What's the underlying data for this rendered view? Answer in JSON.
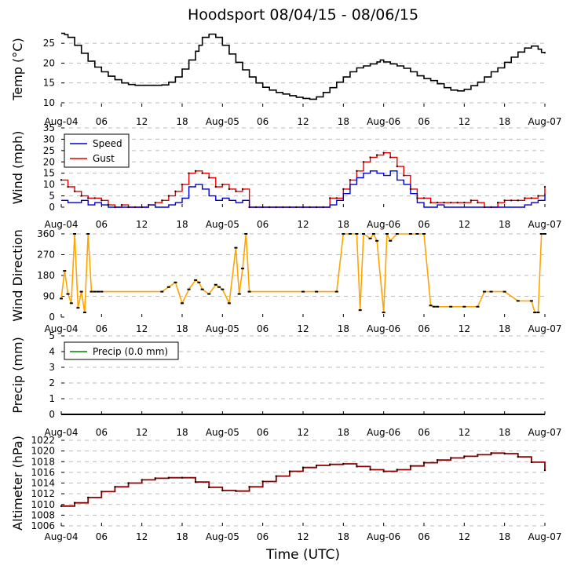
{
  "figure": {
    "title": "Hoodsport 08/04/15 - 08/06/15",
    "xlabel": "Time (UTC)",
    "x_tick_labels": [
      "Aug-04",
      "06",
      "12",
      "18",
      "Aug-05",
      "06",
      "12",
      "18",
      "Aug-06",
      "06",
      "12",
      "18",
      "Aug-07"
    ],
    "x_range_hours": [
      0,
      72
    ],
    "colors": {
      "temp": "#000000",
      "speed": "#0000cc",
      "gust": "#e00000",
      "direction": "#ffa500",
      "precip": "#008000",
      "altimeter": "#8b0000",
      "grid": "#bbbbbb"
    }
  },
  "chart_data": [
    {
      "type": "line",
      "panel": "temperature",
      "ylabel": "Temp (°C)",
      "ylim": [
        9,
        28
      ],
      "yticks": [
        10,
        15,
        20,
        25
      ],
      "grid": true,
      "x": [
        0,
        0.5,
        1,
        2,
        3,
        4,
        5,
        6,
        7,
        8,
        9,
        10,
        11,
        12,
        13,
        14,
        15,
        16,
        17,
        18,
        19,
        20,
        20.5,
        21,
        22,
        23,
        24,
        25,
        26,
        27,
        28,
        29,
        30,
        31,
        32,
        33,
        34,
        35,
        36,
        37,
        38,
        39,
        40,
        41,
        42,
        43,
        44,
        45,
        46,
        47,
        47.5,
        48,
        49,
        50,
        51,
        52,
        53,
        54,
        55,
        56,
        57,
        58,
        59,
        60,
        61,
        62,
        63,
        64,
        65,
        66,
        67,
        68,
        69,
        70,
        71,
        71.5,
        72
      ],
      "series": [
        {
          "name": "Temperature",
          "values": [
            27.5,
            27.2,
            26.5,
            24.5,
            22.5,
            20.5,
            19,
            17.8,
            16.7,
            15.8,
            15,
            14.6,
            14.4,
            14.4,
            14.4,
            14.4,
            14.5,
            15.2,
            16.5,
            18.5,
            20.8,
            23,
            24.5,
            26.5,
            27.3,
            26.5,
            24.5,
            22.3,
            20.2,
            18.3,
            16.5,
            15,
            13.9,
            13.2,
            12.6,
            12.2,
            11.8,
            11.4,
            11.1,
            10.9,
            11.5,
            12.6,
            13.8,
            15.2,
            16.5,
            17.8,
            18.8,
            19.3,
            19.8,
            20.3,
            20.8,
            20.3,
            19.8,
            19.3,
            18.7,
            17.8,
            16.8,
            16.1,
            15.6,
            14.8,
            13.8,
            13.2,
            13,
            13.4,
            14.3,
            15.2,
            16.5,
            17.8,
            18.8,
            20.2,
            21.5,
            22.8,
            23.8,
            24.3,
            23.5,
            22.7,
            22.4
          ]
        }
      ]
    },
    {
      "type": "line",
      "panel": "wind",
      "ylabel": "Wind (mph)",
      "ylim": [
        0,
        35
      ],
      "yticks": [
        0,
        5,
        10,
        15,
        20,
        25,
        30,
        35
      ],
      "grid": true,
      "legend": "top-left",
      "x": [
        0,
        1,
        2,
        3,
        4,
        5,
        6,
        7,
        8,
        9,
        10,
        11,
        12,
        13,
        14,
        15,
        16,
        17,
        18,
        19,
        20,
        21,
        22,
        23,
        24,
        25,
        26,
        27,
        28,
        29,
        30,
        31,
        32,
        33,
        34,
        35,
        36,
        37,
        38,
        39,
        40,
        41,
        42,
        43,
        44,
        45,
        46,
        47,
        48,
        49,
        50,
        51,
        52,
        53,
        54,
        55,
        56,
        57,
        58,
        59,
        60,
        61,
        62,
        63,
        64,
        65,
        66,
        67,
        68,
        69,
        70,
        71,
        72
      ],
      "series": [
        {
          "name": "Speed",
          "values": [
            3,
            2,
            2,
            3,
            1,
            2,
            1,
            0,
            0,
            0,
            0,
            0,
            0,
            1,
            0,
            0,
            1,
            2,
            4,
            9,
            10,
            8,
            5,
            3,
            4,
            3,
            2,
            3,
            0,
            0,
            0,
            0,
            0,
            0,
            0,
            0,
            0,
            0,
            0,
            0,
            1,
            3,
            6,
            10,
            13,
            15,
            16,
            15,
            14,
            16,
            12,
            10,
            6,
            2,
            0,
            0,
            1,
            0,
            0,
            0,
            0,
            0,
            0,
            0,
            0,
            0,
            0,
            0,
            0,
            1,
            2,
            3,
            6
          ]
        },
        {
          "name": "Gust",
          "values": [
            12,
            9,
            7,
            5,
            4,
            4,
            3,
            1,
            0,
            1,
            0,
            0,
            0,
            1,
            2,
            3,
            5,
            7,
            10,
            15,
            16,
            15,
            13,
            9,
            10,
            8,
            7,
            8,
            0,
            0,
            0,
            0,
            0,
            0,
            0,
            0,
            0,
            0,
            0,
            0,
            4,
            4,
            8,
            12,
            16,
            20,
            22,
            23,
            24,
            22,
            18,
            14,
            8,
            4,
            4,
            2,
            2,
            2,
            2,
            2,
            2,
            3,
            2,
            0,
            0,
            2,
            3,
            3,
            3,
            4,
            4,
            5,
            9
          ]
        }
      ],
      "legend_entries": [
        "Speed",
        "Gust"
      ]
    },
    {
      "type": "scatter",
      "panel": "wind_direction",
      "ylabel": "Wind Direction",
      "ylim": [
        0,
        360
      ],
      "yticks": [
        0,
        90,
        180,
        270,
        360
      ],
      "grid": true,
      "x": [
        0,
        0.5,
        1,
        1.5,
        2,
        2.5,
        3,
        3.5,
        4,
        4.5,
        5,
        5.5,
        6,
        15,
        16,
        17,
        18,
        19,
        20,
        20.5,
        21,
        22,
        23,
        23.5,
        24,
        25,
        26,
        26.5,
        27,
        27.5,
        28,
        36,
        38,
        41,
        42,
        43,
        44,
        44.5,
        45,
        46,
        46.5,
        47,
        48,
        48.5,
        49,
        50,
        52,
        53,
        54,
        55,
        55.5,
        56,
        58,
        60,
        62,
        63,
        64,
        66,
        68,
        70,
        70.5,
        71,
        71.5,
        72
      ],
      "series": [
        {
          "name": "Direction",
          "values": [
            80,
            200,
            100,
            60,
            360,
            40,
            110,
            20,
            360,
            110,
            110,
            110,
            110,
            110,
            130,
            150,
            60,
            120,
            160,
            150,
            120,
            100,
            140,
            130,
            120,
            60,
            300,
            100,
            210,
            360,
            110,
            110,
            110,
            110,
            360,
            360,
            360,
            30,
            360,
            340,
            360,
            330,
            20,
            360,
            330,
            360,
            360,
            360,
            360,
            50,
            45,
            45,
            45,
            45,
            45,
            110,
            110,
            110,
            70,
            70,
            20,
            20,
            360,
            360
          ]
        }
      ]
    },
    {
      "type": "line",
      "panel": "precipitation",
      "ylabel": "Precip (mm)",
      "ylim": [
        0,
        5
      ],
      "yticks": [
        0,
        1,
        2,
        3,
        4,
        5
      ],
      "grid": true,
      "legend": "top-left",
      "x": [
        0,
        72
      ],
      "series": [
        {
          "name": "Precip (0.0 mm)",
          "values": [
            0,
            0
          ]
        }
      ],
      "legend_entries": [
        "Precip (0.0 mm)"
      ]
    },
    {
      "type": "line",
      "panel": "altimeter",
      "ylabel": "Altimeter (hPa)",
      "ylim": [
        1006,
        1022
      ],
      "yticks": [
        1006,
        1008,
        1010,
        1012,
        1014,
        1016,
        1018,
        1020,
        1022
      ],
      "grid": true,
      "x": [
        0,
        2,
        4,
        6,
        8,
        10,
        12,
        14,
        16,
        18,
        20,
        22,
        24,
        26,
        28,
        30,
        32,
        34,
        36,
        38,
        40,
        42,
        44,
        46,
        48,
        50,
        52,
        54,
        56,
        58,
        60,
        62,
        64,
        66,
        68,
        70,
        72
      ],
      "series": [
        {
          "name": "Altimeter",
          "values": [
            1009.7,
            1010.3,
            1011.3,
            1012.4,
            1013.3,
            1014.0,
            1014.6,
            1014.9,
            1015.0,
            1015.0,
            1014.2,
            1013.2,
            1012.6,
            1012.5,
            1013.3,
            1014.3,
            1015.3,
            1016.2,
            1016.9,
            1017.3,
            1017.5,
            1017.6,
            1017.1,
            1016.5,
            1016.2,
            1016.5,
            1017.2,
            1017.8,
            1018.3,
            1018.7,
            1019.0,
            1019.3,
            1019.6,
            1019.5,
            1018.9,
            1017.9,
            1016.4
          ]
        }
      ]
    }
  ]
}
